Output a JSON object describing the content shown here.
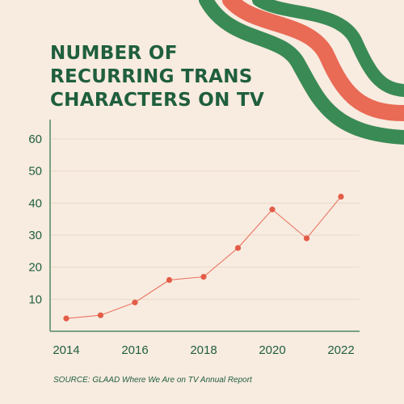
{
  "title_lines": [
    "NUMBER OF",
    "RECURRING TRANS",
    "CHARACTERS ON TV"
  ],
  "source": "SOURCE: GLAAD Where We Are on TV Annual Report",
  "colors": {
    "background": "#f8ebe0",
    "title": "#1f5f3d",
    "axis": "#4f8a63",
    "line": "#e96a55",
    "point": "#e35c48",
    "ribbon_green": "#3a8a55",
    "ribbon_coral": "#e96a55"
  },
  "chart_data": {
    "type": "line",
    "x": [
      2014,
      2015,
      2016,
      2017,
      2018,
      2019,
      2020,
      2021,
      2022
    ],
    "y": [
      4,
      5,
      9,
      16,
      17,
      26,
      38,
      29,
      42
    ],
    "x_ticks": [
      "2014",
      "2016",
      "2018",
      "2020",
      "2022"
    ],
    "y_ticks": [
      "10",
      "20",
      "30",
      "40",
      "50",
      "60"
    ],
    "xlim": [
      2014,
      2022
    ],
    "ylim": [
      0,
      60
    ],
    "grid": true,
    "xlabel": "",
    "ylabel": ""
  }
}
